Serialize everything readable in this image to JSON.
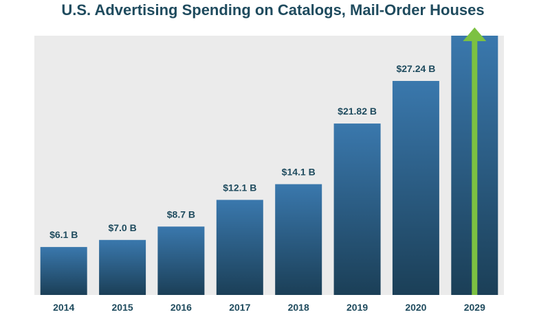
{
  "chart_data": {
    "type": "bar",
    "title": "U.S. Advertising Spending on Catalogs, Mail-Order Houses",
    "xlabel": "",
    "ylabel": "",
    "categories": [
      "2014",
      "2015",
      "2016",
      "2017",
      "2018",
      "2019",
      "2020",
      "2029"
    ],
    "values": [
      6.1,
      7.0,
      8.7,
      12.1,
      14.1,
      21.82,
      27.24,
      33.0
    ],
    "data_labels": [
      "$6.1 B",
      "$7.0 B",
      "$8.7 B",
      "$12.1 B",
      "$14.1 B",
      "$21.82 B",
      "$27.24 B",
      ""
    ],
    "ylim": [
      0,
      33
    ],
    "grid": false,
    "legend": "none",
    "colors": {
      "bar_top": "#3a78ad",
      "bar_bottom": "#1b3f57",
      "plot_background": "#ebebeb",
      "title": "#1f4b5e",
      "arrow": "#7cc142"
    },
    "annotations": [
      {
        "type": "upward-arrow",
        "category": "2029"
      }
    ]
  }
}
